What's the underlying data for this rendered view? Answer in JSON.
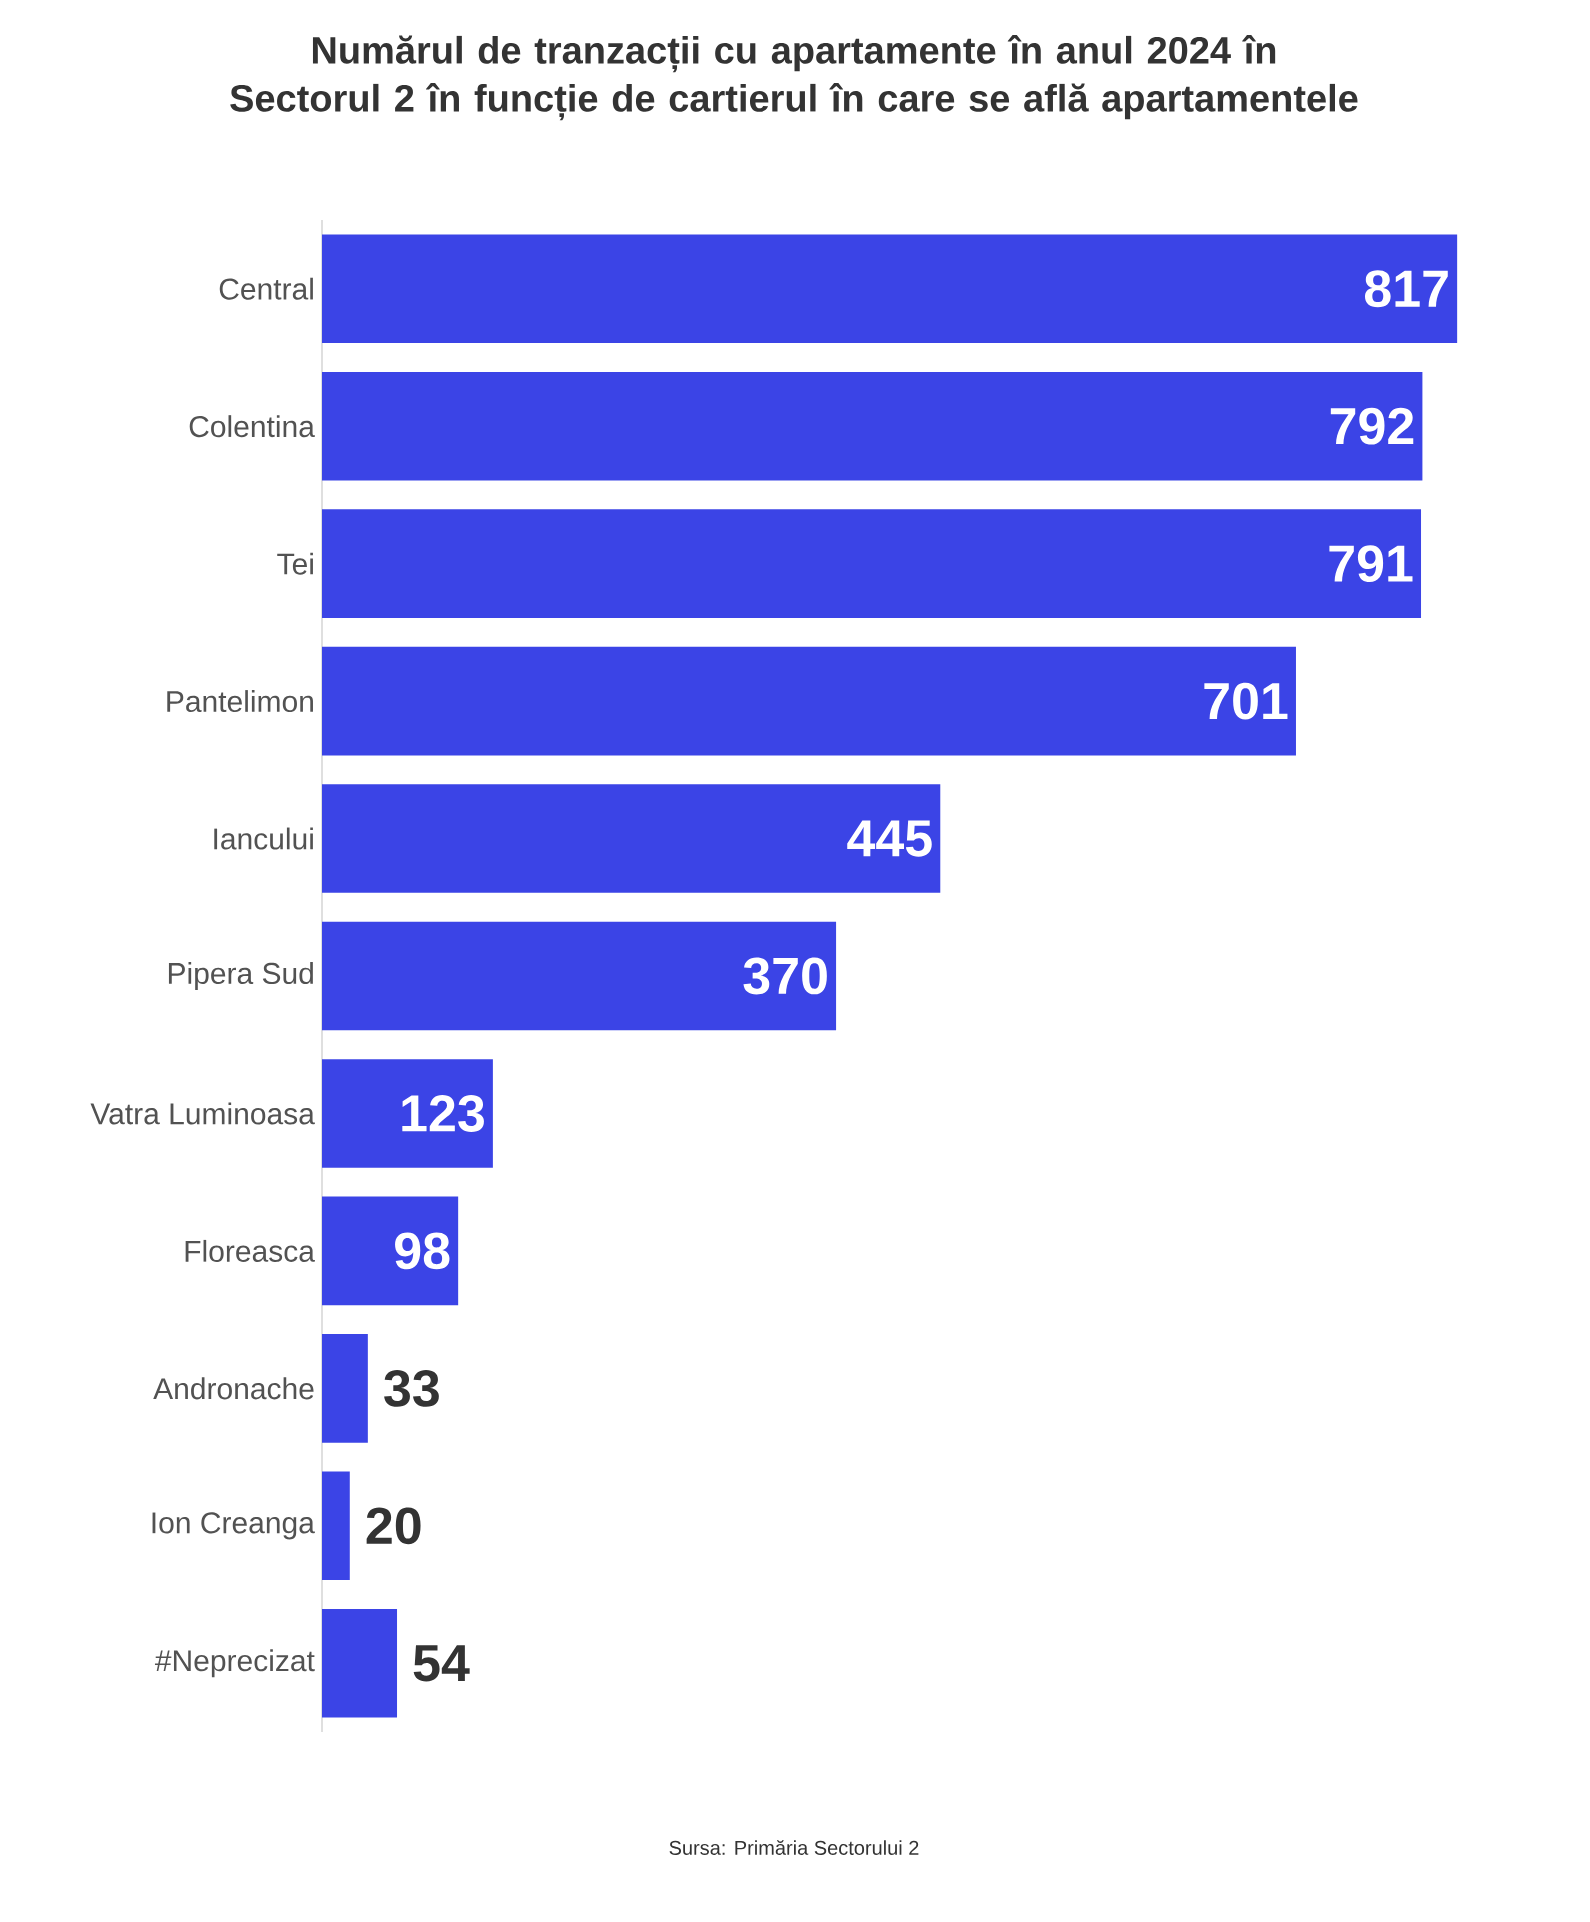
{
  "chart_data": {
    "type": "bar",
    "orientation": "horizontal",
    "title": "Numărul de tranzacții cu apartamente în anul 2024 în Sectorul 2 în funcție de cartierul în care se află apartamentele",
    "categories": [
      "Central",
      "Colentina",
      "Tei",
      "Pantelimon",
      "Iancului",
      "Pipera Sud",
      "Vatra Luminoasa",
      "Floreasca",
      "Andronache",
      "Ion Creanga",
      "#Neprecizat"
    ],
    "values": [
      817,
      792,
      791,
      701,
      445,
      370,
      123,
      98,
      33,
      20,
      54
    ],
    "color": "#3b44e6",
    "data_labels": true,
    "grid": false,
    "annotations": [
      "Sursa: Primăria Sectorului 2"
    ]
  }
}
